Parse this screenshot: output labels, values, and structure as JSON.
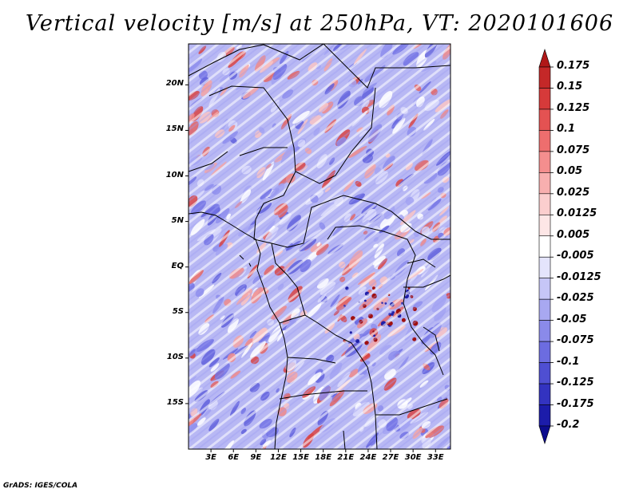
{
  "title": "Vertical velocity [m/s] at 250hPa, VT: 2020101606",
  "credit": "GrADS: IGES/COLA",
  "map": {
    "lat_labels": [
      "20N",
      "15N",
      "10N",
      "5N",
      "EQ",
      "5S",
      "10S",
      "15S"
    ],
    "lat_values": [
      20,
      15,
      10,
      5,
      0,
      -5,
      -10,
      -15
    ],
    "lon_labels": [
      "3E",
      "6E",
      "9E",
      "12E",
      "15E",
      "18E",
      "21E",
      "24E",
      "27E",
      "30E",
      "33E"
    ],
    "lon_values": [
      3,
      6,
      9,
      12,
      15,
      18,
      21,
      24,
      27,
      30,
      33
    ],
    "lon_range": [
      0,
      35
    ],
    "lat_range": [
      -20,
      24.5
    ]
  },
  "colorbar": {
    "labels": [
      "0.175",
      "0.15",
      "0.125",
      "0.1",
      "0.075",
      "0.05",
      "0.025",
      "0.0125",
      "0.005",
      "-0.005",
      "-0.0125",
      "-0.025",
      "-0.05",
      "-0.075",
      "-0.1",
      "-0.125",
      "-0.175",
      "-0.2"
    ],
    "colors": [
      "#b01818",
      "#c42828",
      "#d63a3a",
      "#e45252",
      "#ee6e6e",
      "#f48e8e",
      "#f8afaf",
      "#fbcece",
      "#fde6e6",
      "#ffffff",
      "#e4e4fc",
      "#c6c6f7",
      "#a8a8f1",
      "#8a8aea",
      "#6c6ce0",
      "#4f4fd2",
      "#3333c0",
      "#1c1caa",
      "#0c0c8e"
    ]
  }
}
